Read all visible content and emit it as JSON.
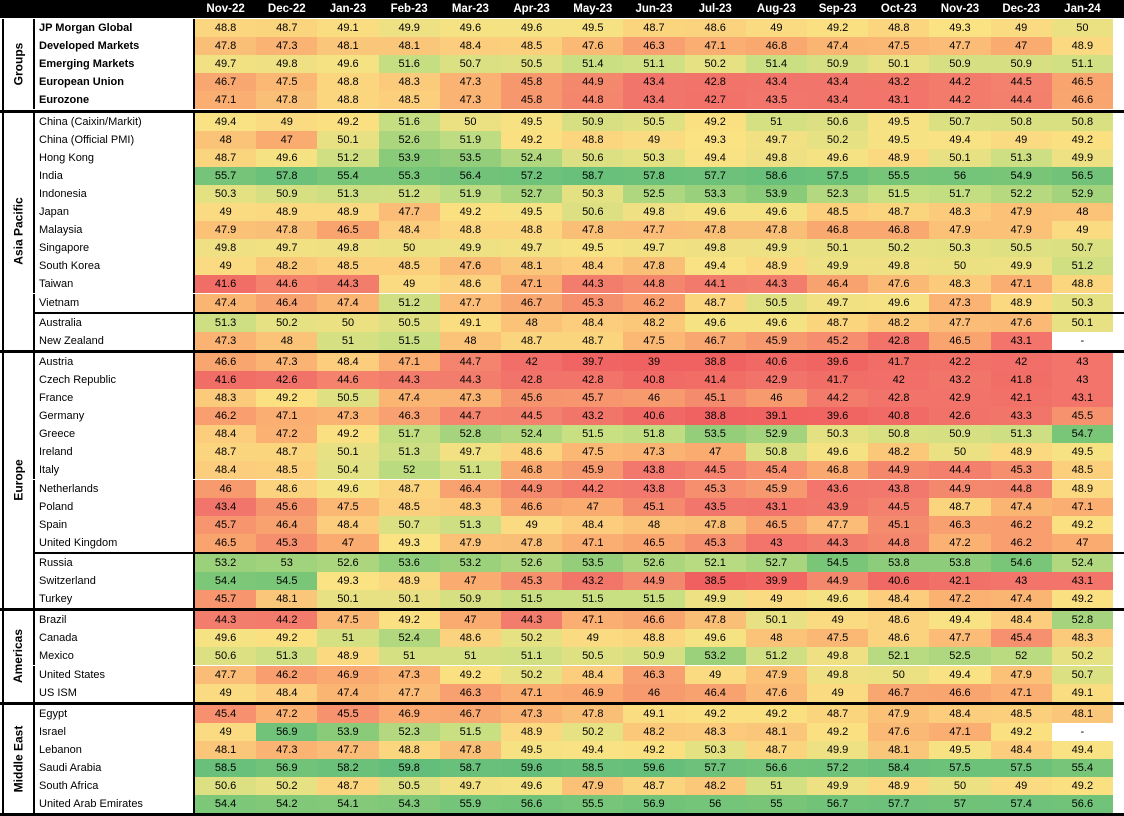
{
  "chart_data": {
    "type": "heatmap",
    "columns": [
      "Nov-22",
      "Dec-22",
      "Jan-23",
      "Feb-23",
      "Mar-23",
      "Apr-23",
      "May-23",
      "Jun-23",
      "Jul-23",
      "Aug-23",
      "Sep-23",
      "Oct-23",
      "Nov-23",
      "Dec-23",
      "Jan-24"
    ],
    "groups": [
      {
        "name": "Groups",
        "blocks": [
          [
            {
              "label": "JP Morgan Global",
              "bold": true,
              "values": [
                48.8,
                48.7,
                49.1,
                49.9,
                49.6,
                49.6,
                49.5,
                48.7,
                48.6,
                49.0,
                49.2,
                48.8,
                49.3,
                49.0,
                50.0
              ]
            },
            {
              "label": "Developed Markets",
              "bold": true,
              "values": [
                47.8,
                47.3,
                48.1,
                48.1,
                48.4,
                48.5,
                47.6,
                46.3,
                47.1,
                46.8,
                47.4,
                47.5,
                47.7,
                47.0,
                48.9
              ]
            },
            {
              "label": "Emerging Markets",
              "bold": true,
              "values": [
                49.7,
                49.8,
                49.6,
                51.6,
                50.7,
                50.5,
                51.4,
                51.1,
                50.2,
                51.4,
                50.9,
                50.1,
                50.9,
                50.9,
                51.1
              ]
            },
            {
              "label": "European Union",
              "bold": true,
              "values": [
                46.7,
                47.5,
                48.8,
                48.3,
                47.3,
                45.8,
                44.9,
                43.4,
                42.8,
                43.4,
                43.4,
                43.2,
                44.2,
                44.5,
                46.5
              ]
            },
            {
              "label": "Eurozone",
              "bold": true,
              "values": [
                47.1,
                47.8,
                48.8,
                48.5,
                47.3,
                45.8,
                44.8,
                43.4,
                42.7,
                43.5,
                43.4,
                43.1,
                44.2,
                44.4,
                46.6
              ]
            }
          ]
        ]
      },
      {
        "name": "Asia Pacific",
        "blocks": [
          [
            {
              "label": "China (Caixin/Markit)",
              "values": [
                49.4,
                49.0,
                49.2,
                51.6,
                50.0,
                49.5,
                50.9,
                50.5,
                49.2,
                51.0,
                50.6,
                49.5,
                50.7,
                50.8,
                50.8
              ]
            },
            {
              "label": "China (Official PMI)",
              "values": [
                48.0,
                47.0,
                50.1,
                52.6,
                51.9,
                49.2,
                48.8,
                49.0,
                49.3,
                49.7,
                50.2,
                49.5,
                49.4,
                49.0,
                49.2
              ]
            },
            {
              "label": "Hong Kong",
              "values": [
                48.7,
                49.6,
                51.2,
                53.9,
                53.5,
                52.4,
                50.6,
                50.3,
                49.4,
                49.8,
                49.6,
                48.9,
                50.1,
                51.3,
                49.9
              ]
            },
            {
              "label": "India",
              "values": [
                55.7,
                57.8,
                55.4,
                55.3,
                56.4,
                57.2,
                58.7,
                57.8,
                57.7,
                58.6,
                57.5,
                55.5,
                56.0,
                54.9,
                56.5
              ]
            },
            {
              "label": "Indonesia",
              "values": [
                50.3,
                50.9,
                51.3,
                51.2,
                51.9,
                52.7,
                50.3,
                52.5,
                53.3,
                53.9,
                52.3,
                51.5,
                51.7,
                52.2,
                52.9
              ]
            },
            {
              "label": "Japan",
              "values": [
                49.0,
                48.9,
                48.9,
                47.7,
                49.2,
                49.5,
                50.6,
                49.8,
                49.6,
                49.6,
                48.5,
                48.7,
                48.3,
                47.9,
                48.0
              ]
            },
            {
              "label": "Malaysia",
              "values": [
                47.9,
                47.8,
                46.5,
                48.4,
                48.8,
                48.8,
                47.8,
                47.7,
                47.8,
                47.8,
                46.8,
                46.8,
                47.9,
                47.9,
                49.0
              ]
            },
            {
              "label": "Singapore",
              "values": [
                49.8,
                49.7,
                49.8,
                50.0,
                49.9,
                49.7,
                49.5,
                49.7,
                49.8,
                49.9,
                50.1,
                50.2,
                50.3,
                50.5,
                50.7
              ]
            },
            {
              "label": "South Korea",
              "values": [
                49.0,
                48.2,
                48.5,
                48.5,
                47.6,
                48.1,
                48.4,
                47.8,
                49.4,
                48.9,
                49.9,
                49.8,
                50.0,
                49.9,
                51.2
              ]
            },
            {
              "label": "Taiwan",
              "values": [
                41.6,
                44.6,
                44.3,
                49.0,
                48.6,
                47.1,
                44.3,
                44.8,
                44.1,
                44.3,
                46.4,
                47.6,
                48.3,
                47.1,
                48.8
              ]
            },
            {
              "label": "Vietnam",
              "values": [
                47.4,
                46.4,
                47.4,
                51.2,
                47.7,
                46.7,
                45.3,
                46.2,
                48.7,
                50.5,
                49.7,
                49.6,
                47.3,
                48.9,
                50.3
              ]
            }
          ],
          [
            {
              "label": "Australia",
              "values": [
                51.3,
                50.2,
                50.0,
                50.5,
                49.1,
                48.0,
                48.4,
                48.2,
                49.6,
                49.6,
                48.7,
                48.2,
                47.7,
                47.6,
                50.1
              ]
            },
            {
              "label": "New Zealand",
              "values": [
                47.3,
                48.0,
                51.0,
                51.5,
                48.0,
                48.7,
                48.7,
                47.5,
                46.7,
                45.9,
                45.2,
                42.8,
                46.5,
                43.1,
                "-"
              ]
            }
          ]
        ]
      },
      {
        "name": "Europe",
        "blocks": [
          [
            {
              "label": "Austria",
              "values": [
                46.6,
                47.3,
                48.4,
                47.1,
                44.7,
                42.0,
                39.7,
                39.0,
                38.8,
                40.6,
                39.6,
                41.7,
                42.2,
                42.0,
                43.0
              ]
            },
            {
              "label": "Czech Republic",
              "values": [
                41.6,
                42.6,
                44.6,
                44.3,
                44.3,
                42.8,
                42.8,
                40.8,
                41.4,
                42.9,
                41.7,
                42.0,
                43.2,
                41.8,
                43.0
              ]
            },
            {
              "label": "France",
              "values": [
                48.3,
                49.2,
                50.5,
                47.4,
                47.3,
                45.6,
                45.7,
                46.0,
                45.1,
                46.0,
                44.2,
                42.8,
                42.9,
                42.1,
                43.1
              ]
            },
            {
              "label": "Germany",
              "values": [
                46.2,
                47.1,
                47.3,
                46.3,
                44.7,
                44.5,
                43.2,
                40.6,
                38.8,
                39.1,
                39.6,
                40.8,
                42.6,
                43.3,
                45.5
              ]
            },
            {
              "label": "Greece",
              "values": [
                48.4,
                47.2,
                49.2,
                51.7,
                52.8,
                52.4,
                51.5,
                51.8,
                53.5,
                52.9,
                50.3,
                50.8,
                50.9,
                51.3,
                54.7
              ]
            },
            {
              "label": "Ireland",
              "values": [
                48.7,
                48.7,
                50.1,
                51.3,
                49.7,
                48.6,
                47.5,
                47.3,
                47.0,
                50.8,
                49.6,
                48.2,
                50.0,
                48.9,
                49.5
              ]
            },
            {
              "label": "Italy",
              "values": [
                48.4,
                48.5,
                50.4,
                52.0,
                51.1,
                46.8,
                45.9,
                43.8,
                44.5,
                45.4,
                46.8,
                44.9,
                44.4,
                45.3,
                48.5
              ]
            },
            {
              "label": "Netherlands",
              "values": [
                46.0,
                48.6,
                49.6,
                48.7,
                46.4,
                44.9,
                44.2,
                43.8,
                45.3,
                45.9,
                43.6,
                43.8,
                44.9,
                44.8,
                48.9
              ]
            },
            {
              "label": "Poland",
              "values": [
                43.4,
                45.6,
                47.5,
                48.5,
                48.3,
                46.6,
                47.0,
                45.1,
                43.5,
                43.1,
                43.9,
                44.5,
                48.7,
                47.4,
                47.1
              ]
            },
            {
              "label": "Spain",
              "values": [
                45.7,
                46.4,
                48.4,
                50.7,
                51.3,
                49.0,
                48.4,
                48.0,
                47.8,
                46.5,
                47.7,
                45.1,
                46.3,
                46.2,
                49.2
              ]
            },
            {
              "label": "United Kingdom",
              "values": [
                46.5,
                45.3,
                47.0,
                49.3,
                47.9,
                47.8,
                47.1,
                46.5,
                45.3,
                43.0,
                44.3,
                44.8,
                47.2,
                46.2,
                47.0
              ]
            }
          ],
          [
            {
              "label": "Russia",
              "values": [
                53.2,
                53.0,
                52.6,
                53.6,
                53.2,
                52.6,
                53.5,
                52.6,
                52.1,
                52.7,
                54.5,
                53.8,
                53.8,
                54.6,
                52.4
              ]
            },
            {
              "label": "Switzerland",
              "values": [
                54.4,
                54.5,
                49.3,
                48.9,
                47.0,
                45.3,
                43.2,
                44.9,
                38.5,
                39.9,
                44.9,
                40.6,
                42.1,
                43.0,
                43.1
              ]
            },
            {
              "label": "Turkey",
              "values": [
                45.7,
                48.1,
                50.1,
                50.1,
                50.9,
                51.5,
                51.5,
                51.5,
                49.9,
                49.0,
                49.6,
                48.4,
                47.2,
                47.4,
                49.2
              ]
            }
          ]
        ]
      },
      {
        "name": "Americas",
        "blocks": [
          [
            {
              "label": "Brazil",
              "values": [
                44.3,
                44.2,
                47.5,
                49.2,
                47.0,
                44.3,
                47.1,
                46.6,
                47.8,
                50.1,
                49.0,
                48.6,
                49.4,
                48.4,
                52.8
              ]
            },
            {
              "label": "Canada",
              "values": [
                49.6,
                49.2,
                51.0,
                52.4,
                48.6,
                50.2,
                49.0,
                48.8,
                49.6,
                48.0,
                47.5,
                48.6,
                47.7,
                45.4,
                48.3
              ]
            },
            {
              "label": "Mexico",
              "values": [
                50.6,
                51.3,
                48.9,
                51.0,
                51.0,
                51.1,
                50.5,
                50.9,
                53.2,
                51.2,
                49.8,
                52.1,
                52.5,
                52.0,
                50.2
              ]
            },
            {
              "label": "United States",
              "values": [
                47.7,
                46.2,
                46.9,
                47.3,
                49.2,
                50.2,
                48.4,
                46.3,
                49.0,
                47.9,
                49.8,
                50.0,
                49.4,
                47.9,
                50.7
              ]
            },
            {
              "label": "US ISM",
              "values": [
                49.0,
                48.4,
                47.4,
                47.7,
                46.3,
                47.1,
                46.9,
                46.0,
                46.4,
                47.6,
                49.0,
                46.7,
                46.6,
                47.1,
                49.1
              ]
            }
          ]
        ]
      },
      {
        "name": "Middle East",
        "blocks": [
          [
            {
              "label": "Egypt",
              "values": [
                45.4,
                47.2,
                45.5,
                46.9,
                46.7,
                47.3,
                47.8,
                49.1,
                49.2,
                49.2,
                48.7,
                47.9,
                48.4,
                48.5,
                48.1
              ]
            },
            {
              "label": "Israel",
              "values": [
                49.0,
                56.9,
                53.9,
                52.3,
                51.5,
                48.9,
                50.2,
                48.2,
                48.3,
                48.1,
                49.2,
                47.6,
                47.1,
                49.2,
                "-"
              ]
            },
            {
              "label": "Lebanon",
              "values": [
                48.1,
                47.3,
                47.7,
                48.8,
                47.8,
                49.5,
                49.4,
                49.2,
                50.3,
                48.7,
                49.9,
                48.1,
                49.5,
                48.4,
                49.4
              ]
            },
            {
              "label": "Saudi Arabia",
              "values": [
                58.5,
                56.9,
                58.2,
                59.8,
                58.7,
                59.6,
                58.5,
                59.6,
                57.7,
                56.6,
                57.2,
                58.4,
                57.5,
                57.5,
                55.4
              ]
            },
            {
              "label": "South Africa",
              "values": [
                50.6,
                50.2,
                48.7,
                50.5,
                49.7,
                49.6,
                47.9,
                48.7,
                48.2,
                51.0,
                49.9,
                48.9,
                50.0,
                49.0,
                49.2
              ]
            },
            {
              "label": "United Arab Emirates",
              "values": [
                54.4,
                54.2,
                54.1,
                54.3,
                55.9,
                56.6,
                55.5,
                56.9,
                56.0,
                55.0,
                56.7,
                57.7,
                57.0,
                57.4,
                56.6
              ]
            }
          ]
        ]
      }
    ]
  }
}
